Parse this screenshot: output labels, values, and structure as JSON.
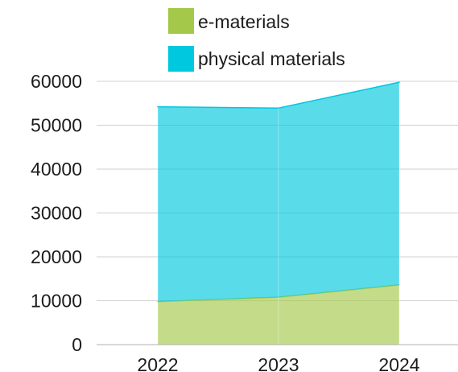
{
  "chart_data": {
    "type": "area",
    "stacked": true,
    "categories": [
      "2022",
      "2023",
      "2024"
    ],
    "series": [
      {
        "name": "e-materials",
        "values": [
          9800,
          10800,
          13600
        ],
        "color": "#a4c94a"
      },
      {
        "name": "physical materials",
        "values": [
          44400,
          43100,
          46200
        ],
        "color": "#00c8df"
      }
    ],
    "ylim": [
      0,
      60000
    ],
    "yticks": [
      "0",
      "10000",
      "20000",
      "30000",
      "40000",
      "50000",
      "60000"
    ],
    "grid": true,
    "legend_position": "top"
  }
}
